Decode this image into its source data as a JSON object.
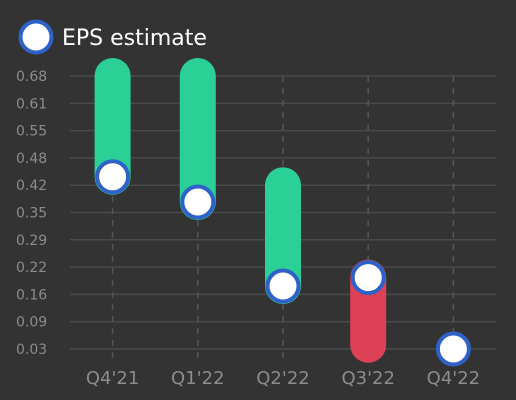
{
  "chart_data": {
    "type": "bar",
    "categories": [
      "Q4'21",
      "Q1'22",
      "Q2'22",
      "Q3'22",
      "Q4'22"
    ],
    "series": [
      {
        "name": "EPS estimate",
        "values": [
          0.44,
          0.38,
          0.18,
          0.2,
          0.03
        ]
      }
    ],
    "actual_values": [
      0.68,
      0.68,
      0.42,
      0.04,
      null
    ],
    "y_ticks": [
      "0.68",
      "0.61",
      "0.55",
      "0.48",
      "0.42",
      "0.35",
      "0.29",
      "0.22",
      "0.16",
      "0.09",
      "0.03"
    ],
    "ylim": [
      0.03,
      0.68
    ],
    "grid": true,
    "legend_position": "top-left",
    "colors": {
      "background": "#333333",
      "grid": "#4a4a4a",
      "vgrid": "#555555",
      "beat": "#2bd097",
      "miss": "#dd4157",
      "marker_fill": "#ffffff",
      "marker_stroke": "#2f62c8",
      "tick_text": "#8c8c8c",
      "legend_text": "#ffffff"
    }
  }
}
